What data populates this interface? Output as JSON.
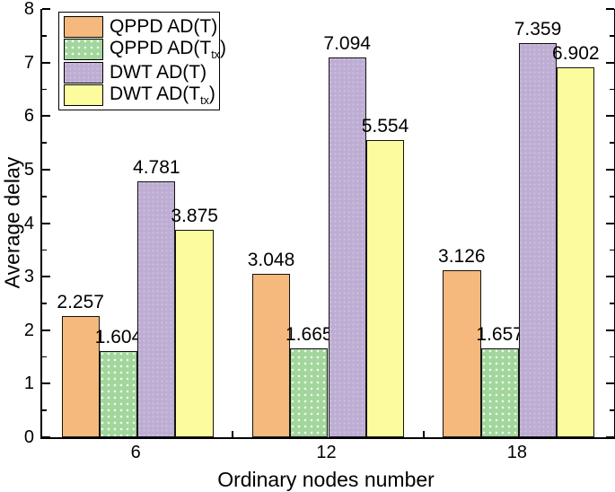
{
  "chart_data": {
    "type": "bar",
    "title": "",
    "xlabel": "Ordinary nodes number",
    "ylabel": "Average delay",
    "categories": [
      "6",
      "12",
      "18"
    ],
    "series": [
      {
        "name": "QPPD AD(T)",
        "label_main": "QPPD AD(T",
        "label_sub": "",
        "label_end": ")",
        "color": "#F5B97D",
        "pattern": "none",
        "values": [
          2.257,
          3.048,
          3.126
        ]
      },
      {
        "name": "QPPD AD(Ttx)",
        "label_main": "QPPD AD(T",
        "label_sub": "tx",
        "label_end": ")",
        "color": "#A2D69C",
        "pattern": "dots",
        "values": [
          1.604,
          1.665,
          1.657
        ]
      },
      {
        "name": "DWT AD(T)",
        "label_main": "DWT AD(T",
        "label_sub": "",
        "label_end": ")",
        "color": "#BDADD3",
        "pattern": "faint-dots",
        "values": [
          4.781,
          7.094,
          7.359
        ]
      },
      {
        "name": "DWT AD(Ttx)",
        "label_main": "DWT AD(T",
        "label_sub": "tx",
        "label_end": ")",
        "color": "#FCFC9E",
        "pattern": "none",
        "values": [
          3.875,
          5.554,
          6.902
        ]
      }
    ],
    "ylim": [
      0,
      8
    ],
    "y_major_ticks": [
      0,
      1,
      2,
      3,
      4,
      5,
      6,
      7,
      8
    ],
    "y_minor_step": 0.5,
    "value_label_decimals": 3,
    "bar_outline_color": "#141414",
    "axis_color": "#000000",
    "legend_position": "top-left",
    "grid": false
  }
}
